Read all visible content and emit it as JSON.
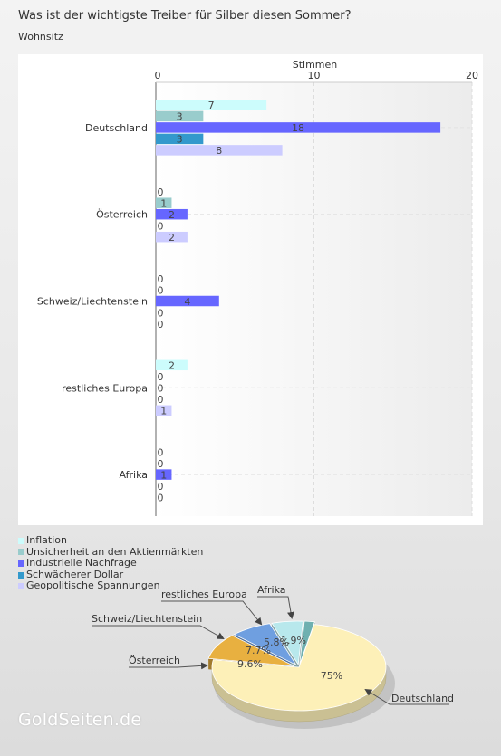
{
  "title": "Was ist der wichtigste Treiber für Silber diesen Sommer?",
  "subtitle": "Wohnsitz",
  "logo_text": "GoldSeiten.de",
  "chart_data": [
    {
      "type": "bar",
      "orientation": "horizontal",
      "xlabel": "Stimmen",
      "xlim": [
        0,
        20
      ],
      "xticks": [
        0,
        10,
        20
      ],
      "axis_position": "top",
      "grid": true,
      "categories": [
        "Deutschland",
        "Österreich",
        "Schweiz/Liechtenstein",
        "restliches Europa",
        "Afrika"
      ],
      "series": [
        {
          "name": "Inflation",
          "color": "#ccfcfc",
          "values": [
            7,
            0,
            0,
            2,
            0
          ]
        },
        {
          "name": "Unsicherheit an den Aktienmärkten",
          "color": "#99cccc",
          "values": [
            3,
            1,
            0,
            0,
            0
          ]
        },
        {
          "name": "Industrielle Nachfrage",
          "color": "#6666ff",
          "values": [
            18,
            2,
            4,
            0,
            1
          ]
        },
        {
          "name": "Schwächerer Dollar",
          "color": "#3399cc",
          "values": [
            3,
            0,
            0,
            0,
            0
          ]
        },
        {
          "name": "Geopolitische Spannungen",
          "color": "#ccccff",
          "values": [
            8,
            2,
            0,
            1,
            0
          ]
        }
      ]
    },
    {
      "type": "pie",
      "style": "3d",
      "slices": [
        {
          "label": "Deutschland",
          "value": 75,
          "display": "75%",
          "color": "#fdf0b8"
        },
        {
          "label": "Österreich",
          "value": 9.6,
          "display": "9.6%",
          "color": "#e8b040"
        },
        {
          "label": "Schweiz/Liechtenstein",
          "value": 7.7,
          "display": "7.7%",
          "color": "#6f9fe0"
        },
        {
          "label": "restliches Europa",
          "value": 5.8,
          "display": "5.8%",
          "color": "#b8e8ec"
        },
        {
          "label": "Afrika",
          "value": 1.9,
          "display": "1.9%",
          "color": "#6fb0b0"
        }
      ]
    }
  ]
}
